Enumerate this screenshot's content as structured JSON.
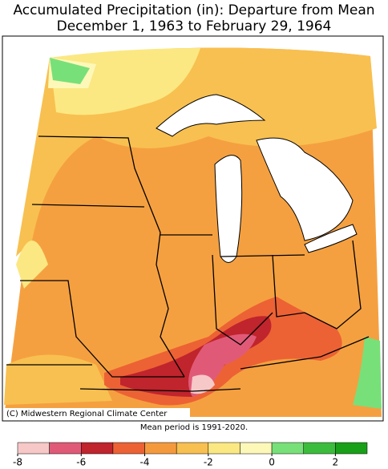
{
  "header": {
    "title_line1": "Accumulated Precipitation (in): Departure from Mean",
    "title_line2": "December 1, 1963 to February 29, 1964"
  },
  "map": {
    "credit": "(C) Midwestern Regional Climate Center"
  },
  "footer": {
    "note": "Mean period is 1991-2020."
  },
  "legend": {
    "bins": [
      -8,
      -7,
      -6,
      -5,
      -4,
      -3,
      -2,
      -1,
      0,
      1,
      2,
      3
    ],
    "colors": [
      "#f7c8c8",
      "#e05a78",
      "#c0242c",
      "#ec6234",
      "#f59a3c",
      "#f8c050",
      "#fbe882",
      "#fdf8b8",
      "#78e078",
      "#3cbc3c",
      "#18a018"
    ],
    "ticks": [
      -8,
      -6,
      -4,
      -2,
      0,
      2
    ]
  }
}
